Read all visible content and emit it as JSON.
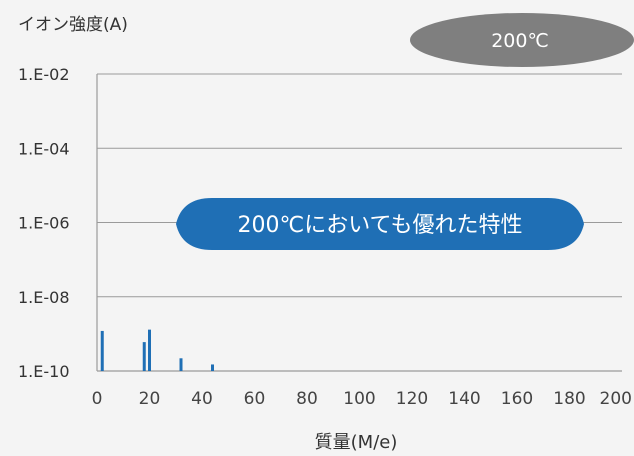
{
  "chart_data": {
    "type": "bar",
    "ylabel": "イオン強度(A)",
    "xlabel": "質量(M/e)",
    "yscale": "log",
    "xlim": [
      0,
      200
    ],
    "ylim": [
      1e-10,
      0.01
    ],
    "x_ticks": [
      0,
      20,
      40,
      60,
      80,
      100,
      120,
      140,
      160,
      180,
      200
    ],
    "x_tick_labels": [
      "0",
      "20",
      "40",
      "60",
      "80",
      "100",
      "120",
      "140",
      "160",
      "180",
      "200"
    ],
    "y_ticks": [
      1e-10,
      1e-08,
      1e-06,
      0.0001,
      0.01
    ],
    "y_tick_labels": [
      "1.E-10",
      "1.E-08",
      "1.E-06",
      "1.E-04",
      "1.E-02"
    ],
    "grid": "horizontal",
    "bar_color": "#1f6fb5",
    "bars": [
      {
        "x": 2,
        "y": 1.2e-09
      },
      {
        "x": 18,
        "y": 6e-10
      },
      {
        "x": 20,
        "y": 1.3e-09
      },
      {
        "x": 32,
        "y": 2.2e-10
      },
      {
        "x": 44,
        "y": 1.5e-10
      }
    ]
  },
  "badge": {
    "label": "200℃",
    "color": "#7f7f7f"
  },
  "callout": {
    "label": "200℃においても優れた特性",
    "color": "#1f6fb5"
  }
}
